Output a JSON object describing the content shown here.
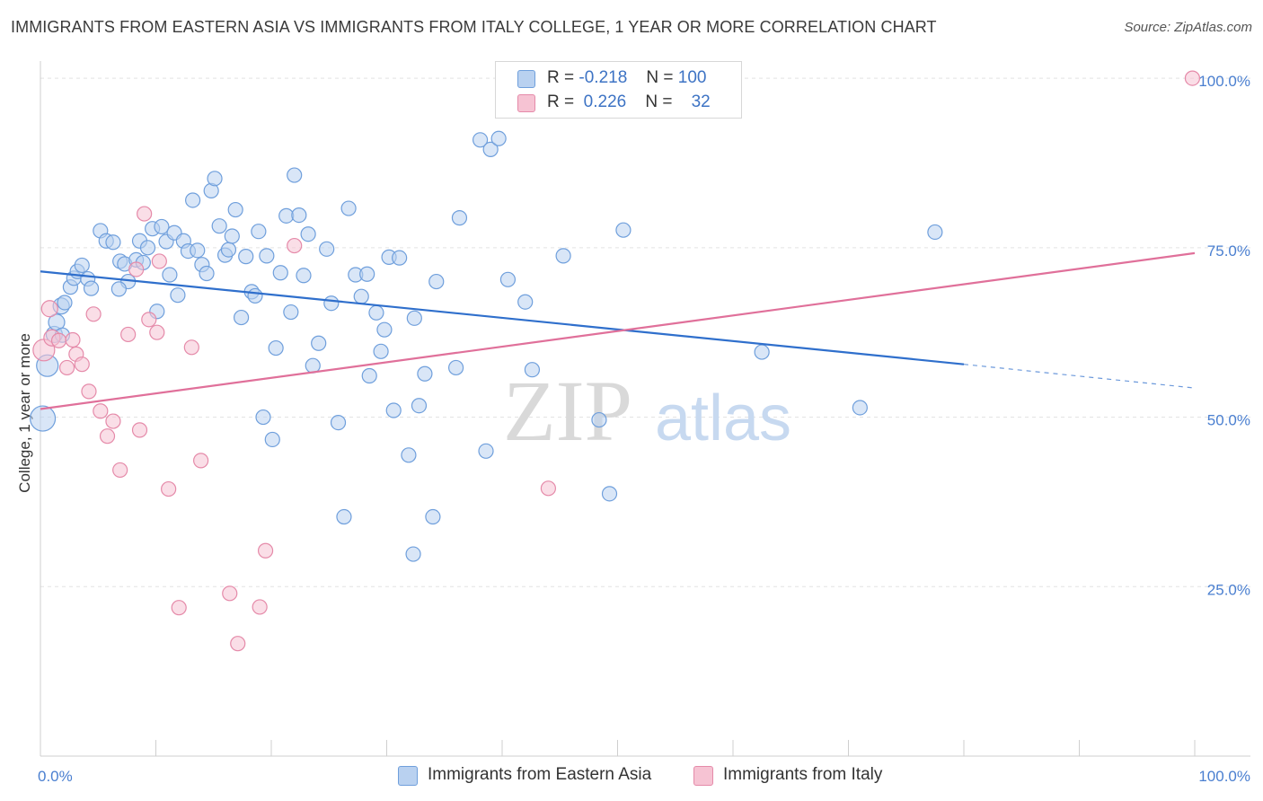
{
  "title": "IMMIGRANTS FROM EASTERN ASIA VS IMMIGRANTS FROM ITALY COLLEGE, 1 YEAR OR MORE CORRELATION CHART",
  "source": "Source: ZipAtlas.com",
  "watermark": {
    "zip": "ZIP",
    "atlas": "atlas"
  },
  "colors": {
    "blue_fill": "#b9d1f0",
    "blue_stroke": "#6f9fdc",
    "blue_line": "#2f6fcc",
    "pink_fill": "#f6c3d3",
    "pink_stroke": "#e58aa9",
    "pink_line": "#e0709a",
    "tick_text": "#4a7fd0",
    "grid": "#e3e3e3"
  },
  "legend": {
    "rows": [
      {
        "r_label": "R =",
        "r_value": "-0.218",
        "n_label": "N =",
        "n_value": "100"
      },
      {
        "r_label": "R =",
        "r_value": "0.226",
        "n_label": "N =",
        "n_value": "32"
      }
    ]
  },
  "bottom_legend": [
    "Immigrants from Eastern Asia",
    "Immigrants from Italy"
  ],
  "chart_data": {
    "type": "scatter",
    "title": "IMMIGRANTS FROM EASTERN ASIA VS IMMIGRANTS FROM ITALY COLLEGE, 1 YEAR OR MORE CORRELATION CHART",
    "xlabel": "",
    "ylabel": "College, 1 year or more",
    "x_tick_labels": [
      "0.0%",
      "100.0%"
    ],
    "y_tick_labels": [
      "25.0%",
      "50.0%",
      "75.0%",
      "100.0%"
    ],
    "y_ticks": [
      25,
      50,
      75,
      100
    ],
    "xlim": [
      0,
      100
    ],
    "ylim": [
      0,
      102
    ],
    "grid": true,
    "legend_position": "top-center",
    "series": [
      {
        "name": "Immigrants from Eastern Asia",
        "color": "#6f9fdc",
        "r": -0.218,
        "n": 100,
        "trend": {
          "x0": 0,
          "y0": 71.5,
          "x1": 80,
          "y1": 57.8,
          "dash_to_x": 100,
          "dash_to_y": 54.3
        },
        "points": [
          [
            0.2,
            49.8,
            14
          ],
          [
            0.6,
            57.6,
            12
          ],
          [
            1.2,
            62.2,
            9
          ],
          [
            1.4,
            64.0,
            9
          ],
          [
            1.8,
            66.4,
            9
          ],
          [
            2.1,
            66.9,
            8
          ],
          [
            2.6,
            69.2,
            8
          ],
          [
            2.9,
            70.5,
            8
          ],
          [
            3.2,
            71.5,
            8
          ],
          [
            3.6,
            72.4,
            8
          ],
          [
            4.1,
            70.4,
            8
          ],
          [
            4.4,
            69.0,
            8
          ],
          [
            5.2,
            77.5,
            8
          ],
          [
            5.7,
            76.0,
            8
          ],
          [
            6.3,
            75.8,
            8
          ],
          [
            6.9,
            73.0,
            8
          ],
          [
            7.3,
            72.6,
            8
          ],
          [
            7.6,
            70.0,
            8
          ],
          [
            8.3,
            73.2,
            8
          ],
          [
            8.6,
            76.0,
            8
          ],
          [
            8.9,
            72.8,
            8
          ],
          [
            9.3,
            75.0,
            8
          ],
          [
            9.7,
            77.8,
            8
          ],
          [
            10.1,
            65.6,
            8
          ],
          [
            10.5,
            78.1,
            8
          ],
          [
            10.9,
            75.9,
            8
          ],
          [
            11.2,
            71.0,
            8
          ],
          [
            11.6,
            77.2,
            8
          ],
          [
            11.9,
            68.0,
            8
          ],
          [
            12.4,
            76.0,
            8
          ],
          [
            12.8,
            74.5,
            8
          ],
          [
            13.2,
            82.0,
            8
          ],
          [
            13.6,
            74.6,
            8
          ],
          [
            14.0,
            72.5,
            8
          ],
          [
            14.4,
            71.2,
            8
          ],
          [
            14.8,
            83.4,
            8
          ],
          [
            15.1,
            85.2,
            8
          ],
          [
            15.5,
            78.2,
            8
          ],
          [
            16.0,
            73.9,
            8
          ],
          [
            16.3,
            74.7,
            8
          ],
          [
            16.6,
            76.7,
            8
          ],
          [
            16.9,
            80.6,
            8
          ],
          [
            17.4,
            64.7,
            8
          ],
          [
            17.8,
            73.7,
            8
          ],
          [
            18.3,
            68.5,
            8
          ],
          [
            18.6,
            67.9,
            8
          ],
          [
            18.9,
            77.4,
            8
          ],
          [
            19.3,
            50.0,
            8
          ],
          [
            19.6,
            73.8,
            8
          ],
          [
            20.1,
            46.7,
            8
          ],
          [
            20.4,
            60.2,
            8
          ],
          [
            20.8,
            71.3,
            8
          ],
          [
            21.3,
            79.7,
            8
          ],
          [
            21.7,
            65.5,
            8
          ],
          [
            22.0,
            85.7,
            8
          ],
          [
            22.4,
            79.8,
            8
          ],
          [
            22.8,
            70.9,
            8
          ],
          [
            23.2,
            77.0,
            8
          ],
          [
            23.6,
            57.6,
            8
          ],
          [
            24.1,
            60.9,
            8
          ],
          [
            24.8,
            74.8,
            8
          ],
          [
            25.2,
            66.8,
            8
          ],
          [
            25.8,
            49.2,
            8
          ],
          [
            26.3,
            35.3,
            8
          ],
          [
            26.7,
            80.8,
            8
          ],
          [
            27.3,
            71.0,
            8
          ],
          [
            27.8,
            67.8,
            8
          ],
          [
            28.3,
            71.1,
            8
          ],
          [
            28.5,
            56.1,
            8
          ],
          [
            29.1,
            65.4,
            8
          ],
          [
            29.5,
            59.7,
            8
          ],
          [
            29.8,
            62.9,
            8
          ],
          [
            30.2,
            73.6,
            8
          ],
          [
            30.6,
            51.0,
            8
          ],
          [
            31.1,
            73.5,
            8
          ],
          [
            31.9,
            44.4,
            8
          ],
          [
            32.3,
            29.8,
            8
          ],
          [
            32.4,
            64.6,
            8
          ],
          [
            32.8,
            51.7,
            8
          ],
          [
            33.3,
            56.4,
            8
          ],
          [
            34.0,
            35.3,
            8
          ],
          [
            34.3,
            70.0,
            8
          ],
          [
            36.0,
            57.3,
            8
          ],
          [
            36.3,
            79.4,
            8
          ],
          [
            38.1,
            90.9,
            8
          ],
          [
            38.6,
            45.0,
            8
          ],
          [
            39.0,
            89.5,
            8
          ],
          [
            39.7,
            91.1,
            8
          ],
          [
            40.5,
            70.3,
            8
          ],
          [
            42.0,
            67.0,
            8
          ],
          [
            42.6,
            57.0,
            8
          ],
          [
            45.3,
            73.8,
            8
          ],
          [
            48.4,
            49.6,
            8
          ],
          [
            49.3,
            38.7,
            8
          ],
          [
            50.5,
            77.6,
            8
          ],
          [
            62.5,
            59.6,
            8
          ],
          [
            71.0,
            51.4,
            8
          ],
          [
            77.5,
            77.3,
            8
          ],
          [
            1.9,
            62.1,
            8
          ],
          [
            6.8,
            68.9,
            8
          ]
        ]
      },
      {
        "name": "Immigrants from Italy",
        "color": "#e58aa9",
        "r": 0.226,
        "n": 32,
        "trend": {
          "x0": 0,
          "y0": 51.2,
          "x1": 100,
          "y1": 74.2
        },
        "points": [
          [
            0.3,
            59.9,
            12
          ],
          [
            0.8,
            66.0,
            9
          ],
          [
            1.0,
            61.7,
            9
          ],
          [
            1.6,
            61.3,
            8
          ],
          [
            2.3,
            57.3,
            8
          ],
          [
            2.8,
            61.4,
            8
          ],
          [
            3.1,
            59.3,
            8
          ],
          [
            3.6,
            57.8,
            8
          ],
          [
            4.2,
            53.8,
            8
          ],
          [
            4.6,
            65.2,
            8
          ],
          [
            5.2,
            50.9,
            8
          ],
          [
            5.8,
            47.2,
            8
          ],
          [
            6.3,
            49.4,
            8
          ],
          [
            6.9,
            42.2,
            8
          ],
          [
            7.6,
            62.2,
            8
          ],
          [
            8.3,
            71.8,
            8
          ],
          [
            8.6,
            48.1,
            8
          ],
          [
            9.0,
            80.0,
            8
          ],
          [
            9.4,
            64.4,
            8
          ],
          [
            10.3,
            73.0,
            8
          ],
          [
            10.1,
            62.5,
            8
          ],
          [
            11.1,
            39.4,
            8
          ],
          [
            12.0,
            21.9,
            8
          ],
          [
            13.1,
            60.3,
            8
          ],
          [
            13.9,
            43.6,
            8
          ],
          [
            16.4,
            24.0,
            8
          ],
          [
            17.1,
            16.6,
            8
          ],
          [
            19.0,
            22.0,
            8
          ],
          [
            19.5,
            30.3,
            8
          ],
          [
            22.0,
            75.3,
            8
          ],
          [
            44.0,
            39.5,
            8
          ],
          [
            99.8,
            100.0,
            8
          ]
        ]
      }
    ]
  }
}
